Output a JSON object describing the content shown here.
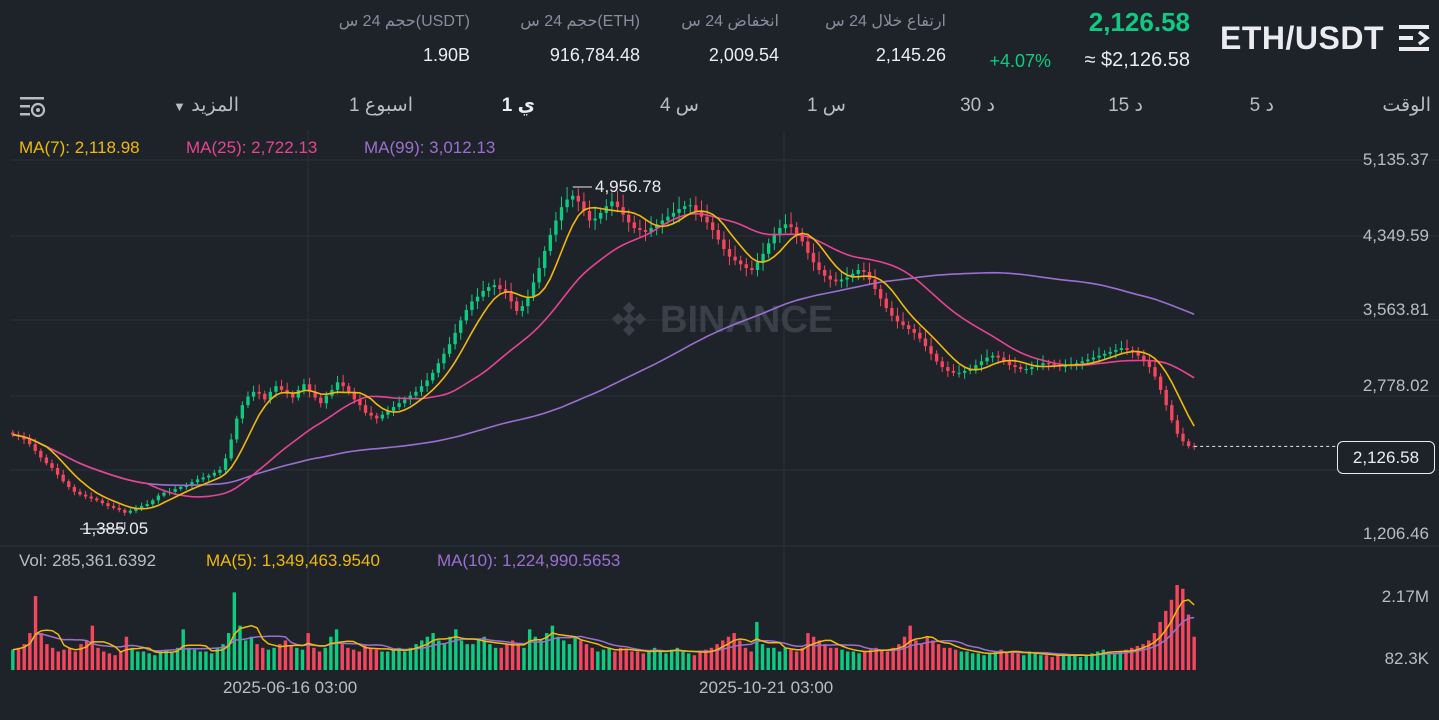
{
  "header": {
    "pair": "ETH/USDT",
    "last_price": "2,126.58",
    "change_pct": "+4.07%",
    "usd_price": "≈ $2,126.58",
    "stats": [
      {
        "label": "ارتفاع خلال 24 س",
        "value": "2,145.26"
      },
      {
        "label": "انخفاض 24 س",
        "value": "2,009.54"
      },
      {
        "label": "حجم 24 س(ETH)",
        "value": "916,784.48"
      },
      {
        "label": "حجم 24 س(USDT)",
        "value": "1.90B"
      }
    ]
  },
  "timeframes": {
    "time_label": "الوقت",
    "items": [
      "5 د",
      "15 د",
      "30 د",
      "1 س",
      "4 س",
      "1 ي",
      "1 اسبوع"
    ],
    "active": "1 ي",
    "more": "المزيد"
  },
  "indicators": {
    "ma7": "MA(7): 2,118.98",
    "ma25": "MA(25): 2,722.13",
    "ma99": "MA(99): 3,012.13",
    "vol": "Vol: 285,361.6392",
    "vol_ma5": "MA(5): 1,349,463.9540",
    "vol_ma10": "MA(10): 1,224,990.5653"
  },
  "colors": {
    "up": "#0ecb81",
    "down": "#f6465d",
    "ma7": "#f0b90b",
    "ma25": "#e84393",
    "ma99": "#9b6fd1",
    "bg": "#1e2329",
    "grid": "#2b3139"
  },
  "watermark": "BINANCE",
  "chart_data": {
    "type": "candlestick",
    "y_axis_labels": [
      "5,135.37",
      "4,349.59",
      "3,563.81",
      "2,778.02",
      "1,206.46"
    ],
    "current_price_label": "2,126.58",
    "max_label": "4,956.78",
    "min_label": "1,385.05",
    "volume_axis_labels": [
      "2.17M",
      "82.3K"
    ],
    "x_labels": [
      "2025-06-16 03:00",
      "2025-10-21 03:00"
    ],
    "price_ylim": [
      1206.46,
      5135.37
    ],
    "closes": [
      2250,
      2230,
      2200,
      2150,
      2080,
      2010,
      1950,
      1900,
      1830,
      1760,
      1700,
      1650,
      1620,
      1600,
      1580,
      1560,
      1530,
      1500,
      1480,
      1460,
      1430,
      1450,
      1480,
      1500,
      1520,
      1560,
      1610,
      1640,
      1650,
      1680,
      1700,
      1720,
      1750,
      1780,
      1800,
      1820,
      1850,
      1880,
      2000,
      2200,
      2420,
      2560,
      2650,
      2700,
      2680,
      2620,
      2700,
      2760,
      2720,
      2680,
      2640,
      2720,
      2780,
      2700,
      2640,
      2580,
      2660,
      2720,
      2800,
      2760,
      2700,
      2620,
      2560,
      2480,
      2450,
      2420,
      2460,
      2500,
      2540,
      2580,
      2620,
      2660,
      2700,
      2760,
      2820,
      2900,
      3000,
      3100,
      3200,
      3320,
      3450,
      3560,
      3650,
      3700,
      3760,
      3800,
      3820,
      3780,
      3740,
      3650,
      3550,
      3600,
      3700,
      3850,
      4000,
      4180,
      4350,
      4500,
      4640,
      4720,
      4760,
      4700,
      4600,
      4500,
      4520,
      4580,
      4650,
      4700,
      4640,
      4560,
      4480,
      4420,
      4400,
      4380,
      4420,
      4460,
      4500,
      4540,
      4580,
      4620,
      4650,
      4660,
      4600,
      4540,
      4480,
      4400,
      4300,
      4200,
      4120,
      4080,
      4040,
      4000,
      3980,
      4060,
      4150,
      4260,
      4360,
      4420,
      4460,
      4430,
      4350,
      4280,
      4160,
      4060,
      3980,
      3920,
      3880,
      3860,
      3880,
      3900,
      3940,
      3980,
      3960,
      3880,
      3780,
      3680,
      3580,
      3500,
      3440,
      3400,
      3360,
      3320,
      3260,
      3180,
      3100,
      3020,
      2960,
      2920,
      2900,
      2900,
      2920,
      2940,
      2980,
      3020,
      3060,
      3080,
      3060,
      3020,
      2980,
      2960,
      2940,
      2940,
      2960,
      2980,
      3000,
      2990,
      2980,
      2970,
      2970,
      2980,
      3000,
      3020,
      3040,
      3060,
      3080,
      3100,
      3120,
      3140,
      3160,
      3140,
      3120,
      3080,
      3020,
      2960,
      2860,
      2720,
      2560,
      2400,
      2260,
      2180,
      2130,
      2126.58
    ],
    "ma7_last": 2118.98,
    "ma25_last": 2722.13,
    "ma99_last": 3012.13
  },
  "volume_data": {
    "values": [
      0.55,
      0.6,
      0.7,
      1.0,
      2.0,
      1.0,
      0.7,
      0.6,
      0.5,
      0.55,
      0.6,
      0.5,
      0.7,
      0.8,
      1.2,
      0.6,
      0.5,
      0.45,
      0.4,
      0.5,
      0.9,
      0.6,
      0.5,
      0.5,
      0.45,
      0.4,
      0.5,
      0.55,
      0.5,
      0.6,
      1.1,
      0.6,
      0.55,
      0.5,
      0.5,
      0.45,
      0.6,
      0.7,
      1.0,
      2.1,
      1.2,
      0.8,
      0.9,
      0.7,
      0.6,
      0.55,
      0.6,
      0.7,
      0.8,
      0.65,
      0.6,
      0.55,
      1.0,
      0.6,
      0.5,
      0.6,
      0.9,
      1.1,
      0.7,
      0.6,
      0.55,
      0.5,
      0.7,
      0.6,
      0.55,
      0.5,
      0.5,
      0.55,
      0.6,
      0.5,
      0.6,
      0.7,
      0.8,
      0.9,
      1.0,
      0.8,
      0.7,
      0.9,
      1.1,
      0.8,
      0.7,
      0.7,
      0.8,
      0.9,
      0.7,
      0.6,
      0.6,
      0.7,
      0.8,
      0.7,
      0.6,
      1.1,
      0.9,
      0.8,
      1.0,
      1.2,
      0.9,
      0.8,
      0.7,
      0.9,
      0.8,
      0.7,
      0.6,
      0.5,
      0.55,
      0.6,
      0.5,
      0.6,
      0.55,
      0.5,
      0.5,
      0.45,
      0.5,
      0.6,
      0.5,
      0.45,
      0.55,
      0.6,
      0.5,
      0.45,
      0.4,
      0.5,
      0.55,
      0.6,
      0.7,
      0.8,
      0.9,
      1.0,
      0.8,
      0.6,
      0.5,
      1.3,
      0.7,
      0.6,
      0.6,
      0.5,
      0.6,
      0.55,
      0.5,
      0.6,
      1.0,
      0.9,
      0.8,
      0.7,
      0.6,
      0.6,
      0.55,
      0.5,
      0.5,
      0.45,
      0.5,
      0.55,
      0.6,
      0.55,
      0.5,
      0.6,
      0.7,
      0.9,
      1.2,
      0.8,
      0.7,
      0.9,
      0.8,
      0.7,
      0.6,
      0.6,
      0.55,
      0.5,
      0.5,
      0.45,
      0.45,
      0.4,
      0.45,
      0.5,
      0.55,
      0.5,
      0.5,
      0.45,
      0.4,
      0.5,
      0.45,
      0.4,
      0.4,
      0.35,
      0.4,
      0.45,
      0.4,
      0.4,
      0.35,
      0.4,
      0.45,
      0.5,
      0.55,
      0.5,
      0.45,
      0.5,
      0.55,
      0.6,
      0.65,
      0.7,
      0.8,
      1.0,
      1.3,
      1.6,
      1.9,
      2.3,
      2.2,
      1.5,
      0.9
    ]
  }
}
